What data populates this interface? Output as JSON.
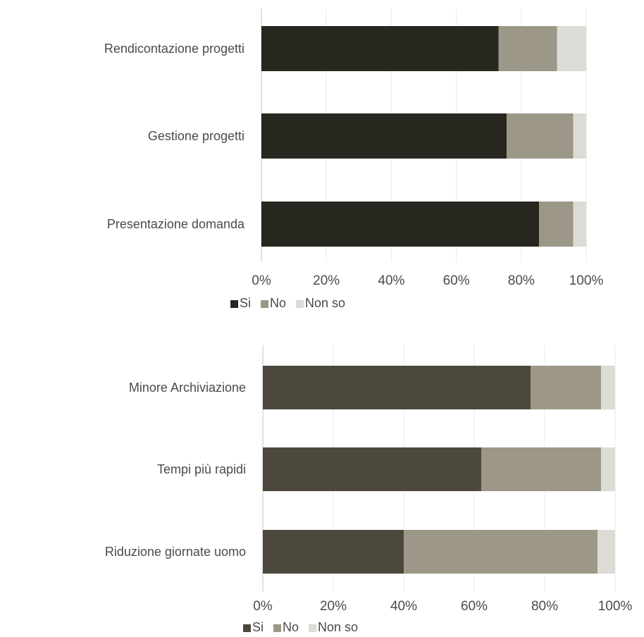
{
  "chart_data": [
    {
      "type": "bar",
      "orientation": "horizontal",
      "stacked": true,
      "categories": [
        "Rendicontazione progetti",
        "Gestione progetti",
        "Presentazione domanda"
      ],
      "series": [
        {
          "name": "Si",
          "values": [
            73,
            75.5,
            85.5
          ],
          "color": "#27261f"
        },
        {
          "name": "No",
          "values": [
            18,
            20.5,
            10.5
          ],
          "color": "#9c9786"
        },
        {
          "name": "Non so",
          "values": [
            9,
            4,
            4
          ],
          "color": "#dcdbd6"
        }
      ],
      "xlim": [
        0,
        100
      ],
      "xticks": [
        "0%",
        "20%",
        "40%",
        "60%",
        "80%",
        "100%"
      ],
      "grid": true,
      "legend": "bottom"
    },
    {
      "type": "bar",
      "orientation": "horizontal",
      "stacked": true,
      "categories": [
        "Minore Archiviazione",
        "Tempi più rapidi",
        "Riduzione giornate uomo"
      ],
      "series": [
        {
          "name": "Si",
          "values": [
            76,
            62,
            40
          ],
          "color": "#4d483d"
        },
        {
          "name": "No",
          "values": [
            20,
            34,
            55
          ],
          "color": "#9c9786"
        },
        {
          "name": "Non so",
          "values": [
            4,
            4,
            5
          ],
          "color": "#dcdbd6"
        }
      ],
      "xlim": [
        0,
        100
      ],
      "xticks": [
        "0%",
        "20%",
        "40%",
        "60%",
        "80%",
        "100%"
      ],
      "grid": true,
      "legend": "bottom"
    }
  ]
}
